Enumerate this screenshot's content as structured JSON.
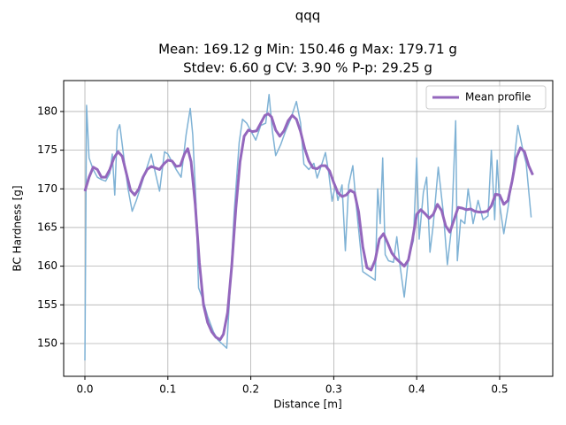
{
  "chart_data": {
    "type": "line",
    "suptitle": "qqq",
    "title_lines": [
      "Mean: 169.12 g    Min: 150.46 g    Max: 179.71 g",
      "Stdev: 6.60 g    CV: 3.90 %    P-p: 29.25 g"
    ],
    "x_label": "Distance [m]",
    "y_label": "BC Hardness [g]",
    "xlim": [
      -0.0256,
      0.564
    ],
    "ylim": [
      145.76,
      184.0
    ],
    "xticks": [
      {
        "value": 0,
        "label": "0.0"
      },
      0.1,
      0.2,
      0.3,
      0.4,
      0.5
    ],
    "yticks": [
      150,
      155,
      160,
      165,
      170,
      175,
      180
    ],
    "grid": true,
    "legend": "upper-right",
    "series": [
      {
        "color": "#7fb2d5",
        "width": 1.5,
        "x": [
          0,
          0.002,
          0.005,
          0.01,
          0.015,
          0.02,
          0.025,
          0.03,
          0.033,
          0.036,
          0.039,
          0.042,
          0.047,
          0.052,
          0.057,
          0.062,
          0.068,
          0.074,
          0.08,
          0.084,
          0.09,
          0.096,
          0.1,
          0.105,
          0.11,
          0.116,
          0.122,
          0.127,
          0.13,
          0.134,
          0.137,
          0.142,
          0.148,
          0.155,
          0.16,
          0.167,
          0.171,
          0.175,
          0.18,
          0.186,
          0.19,
          0.195,
          0.2,
          0.206,
          0.212,
          0.218,
          0.222,
          0.226,
          0.23,
          0.236,
          0.242,
          0.248,
          0.255,
          0.26,
          0.264,
          0.27,
          0.276,
          0.28,
          0.285,
          0.29,
          0.294,
          0.298,
          0.302,
          0.305,
          0.31,
          0.314,
          0.318,
          0.323,
          0.327,
          0.335,
          0.343,
          0.35,
          0.353,
          0.356,
          0.359,
          0.362,
          0.366,
          0.372,
          0.376,
          0.38,
          0.385,
          0.39,
          0.396,
          0.4,
          0.403,
          0.408,
          0.412,
          0.416,
          0.42,
          0.426,
          0.432,
          0.437,
          0.442,
          0.447,
          0.449,
          0.453,
          0.458,
          0.462,
          0.468,
          0.474,
          0.48,
          0.486,
          0.49,
          0.494,
          0.497,
          0.5,
          0.505,
          0.51,
          0.516,
          0.522,
          0.528,
          0.532,
          0.538
        ],
        "values": [
          147.8,
          180.8,
          174,
          172.5,
          171.5,
          171.2,
          171,
          172,
          174.5,
          169.2,
          177.5,
          178.3,
          174,
          170,
          167.1,
          168.5,
          170.5,
          172.5,
          174.5,
          172.5,
          169.7,
          174.8,
          174.5,
          173.5,
          172.5,
          171.5,
          177,
          180.4,
          177,
          168,
          157.2,
          155.8,
          153.5,
          151.5,
          150.5,
          149.8,
          149.4,
          157,
          167,
          176,
          179,
          178.5,
          177.5,
          176.3,
          178.2,
          178.5,
          182.2,
          177.5,
          174.3,
          175.7,
          177.5,
          179,
          181.3,
          178.5,
          173.2,
          172.5,
          173.3,
          171.4,
          173,
          174.7,
          172,
          168.4,
          170.5,
          168.5,
          170.5,
          162,
          170.5,
          173,
          168,
          159.3,
          158.7,
          158.2,
          170,
          165.5,
          174,
          161.5,
          160.7,
          160.5,
          163.8,
          160,
          156,
          161,
          163.3,
          174,
          163.5,
          169.5,
          171.5,
          161.8,
          165.4,
          172.8,
          167,
          160.2,
          165,
          178.8,
          160.7,
          166,
          165.5,
          170,
          165.5,
          168.5,
          166,
          166.5,
          175,
          166,
          173.7,
          168,
          164.2,
          167.5,
          172,
          178.2,
          175,
          173.3,
          166.3
        ]
      },
      {
        "name": "Mean profile",
        "color": "#9467bd",
        "width": 3,
        "x": [
          0,
          0.005,
          0.01,
          0.015,
          0.02,
          0.025,
          0.03,
          0.035,
          0.04,
          0.045,
          0.05,
          0.055,
          0.06,
          0.065,
          0.07,
          0.075,
          0.08,
          0.085,
          0.09,
          0.095,
          0.1,
          0.105,
          0.11,
          0.115,
          0.12,
          0.124,
          0.128,
          0.133,
          0.138,
          0.143,
          0.148,
          0.153,
          0.158,
          0.163,
          0.167,
          0.172,
          0.177,
          0.182,
          0.187,
          0.192,
          0.197,
          0.202,
          0.207,
          0.212,
          0.217,
          0.221,
          0.225,
          0.23,
          0.235,
          0.24,
          0.245,
          0.25,
          0.255,
          0.26,
          0.265,
          0.27,
          0.275,
          0.28,
          0.285,
          0.29,
          0.295,
          0.3,
          0.305,
          0.31,
          0.315,
          0.32,
          0.325,
          0.33,
          0.335,
          0.34,
          0.345,
          0.35,
          0.355,
          0.36,
          0.365,
          0.37,
          0.375,
          0.38,
          0.385,
          0.39,
          0.395,
          0.4,
          0.405,
          0.41,
          0.415,
          0.42,
          0.425,
          0.43,
          0.435,
          0.44,
          0.445,
          0.45,
          0.455,
          0.46,
          0.465,
          0.47,
          0.475,
          0.48,
          0.485,
          0.49,
          0.495,
          0.5,
          0.505,
          0.51,
          0.515,
          0.52,
          0.525,
          0.53,
          0.535,
          0.54
        ],
        "values": [
          169.7,
          171.5,
          172.8,
          172.5,
          171.5,
          171.5,
          172.5,
          174,
          174.8,
          174.2,
          172,
          169.8,
          169.2,
          170,
          171.5,
          172.5,
          172.9,
          172.7,
          172.5,
          173.2,
          173.7,
          173.6,
          172.9,
          173,
          174.5,
          175.2,
          173.5,
          168,
          160.5,
          155,
          152.7,
          151.5,
          150.8,
          150.5,
          151.2,
          154,
          160,
          167.5,
          173.5,
          176.8,
          177.6,
          177.4,
          177.5,
          178.5,
          179.5,
          179.7,
          179.3,
          177.6,
          176.8,
          177.5,
          178.8,
          179.5,
          179,
          177.4,
          175.2,
          173.6,
          172.7,
          172.6,
          173,
          173,
          172.3,
          170.8,
          169.5,
          169,
          169.2,
          169.8,
          169.5,
          167,
          162.5,
          159.8,
          159.5,
          160.8,
          163.5,
          164.2,
          163,
          161.7,
          161,
          160.5,
          160,
          160.8,
          163.5,
          166.7,
          167.3,
          166.8,
          166.2,
          166.7,
          168,
          167.2,
          165.2,
          164.4,
          166,
          167.6,
          167.5,
          167.3,
          167.4,
          167.1,
          167,
          167,
          167.1,
          167.8,
          169.3,
          169.2,
          168,
          168.5,
          171,
          174,
          175.3,
          174.8,
          173,
          171.8
        ]
      }
    ]
  }
}
